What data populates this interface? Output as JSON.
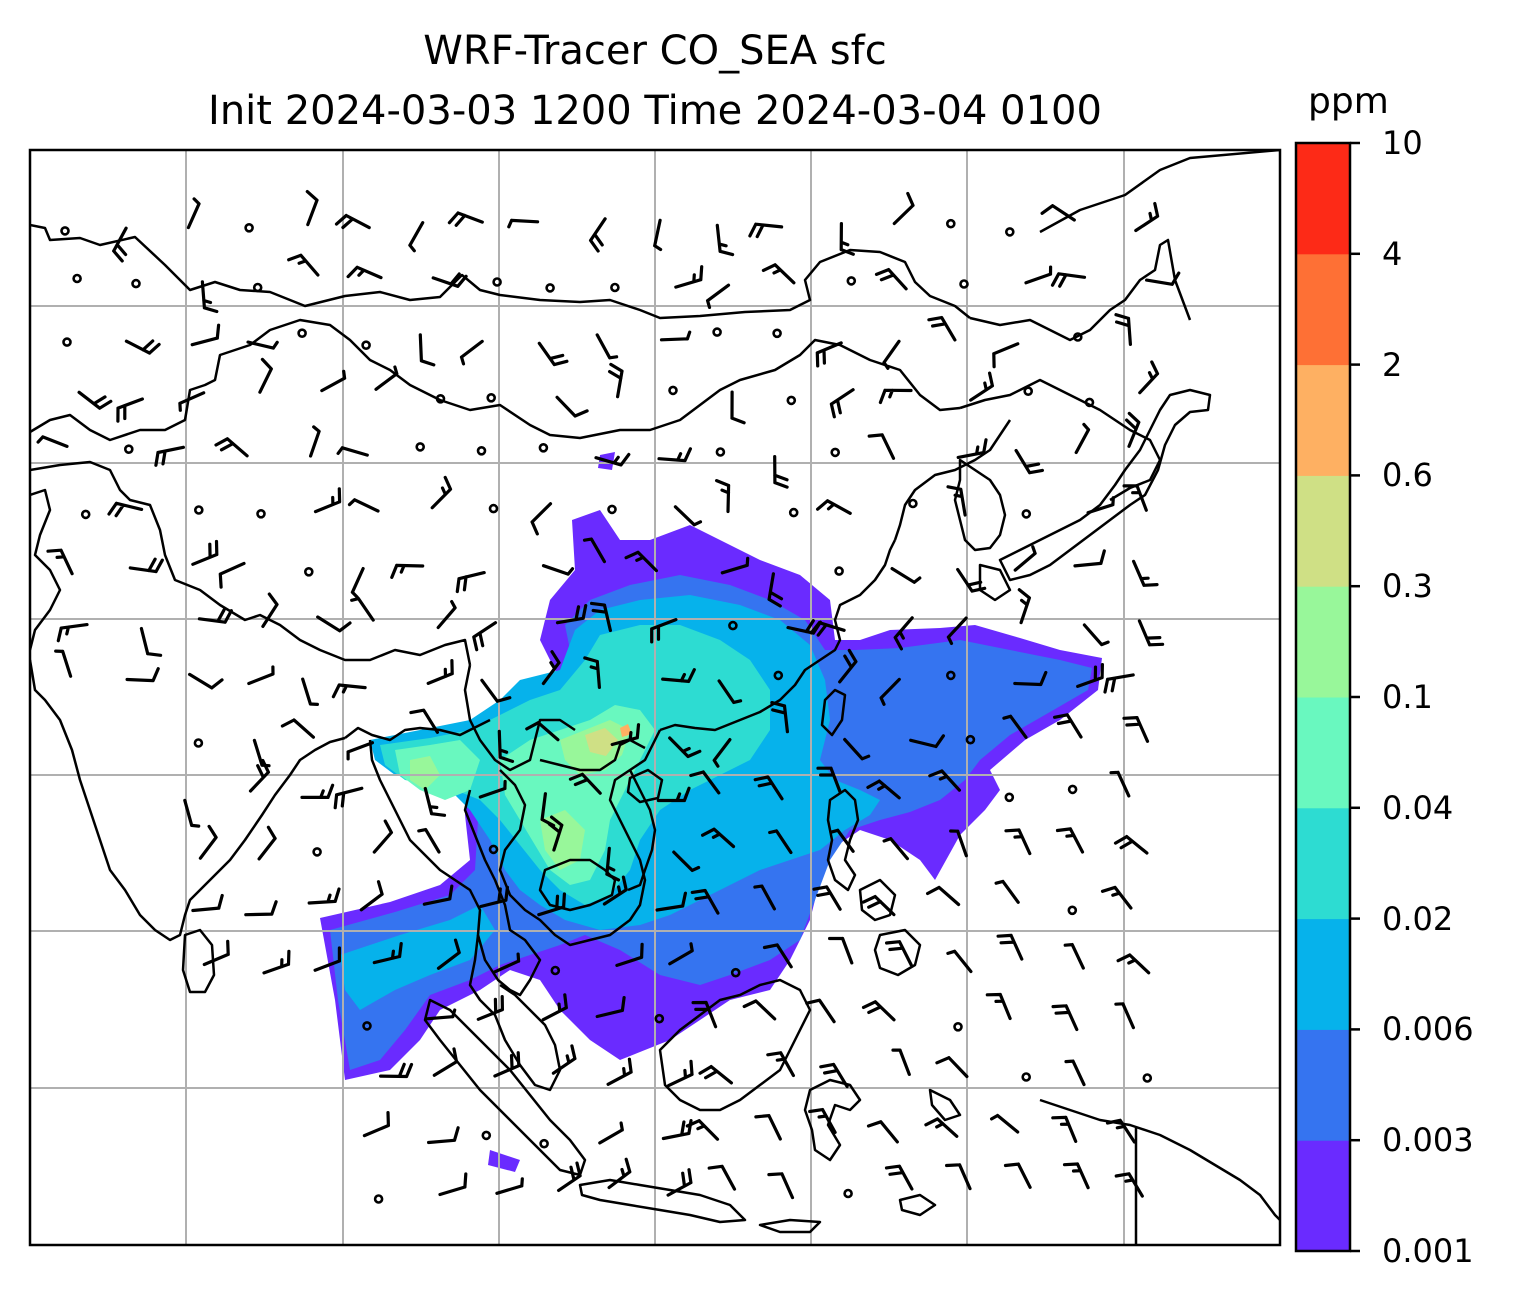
{
  "title": {
    "line1": "WRF-Tracer CO_SEA sfc",
    "line2": "Init 2024-03-03 1200 Time 2024-03-04 0100"
  },
  "colorbar": {
    "unit": "ppm",
    "ticks": [
      "0.001",
      "0.003",
      "0.006",
      "0.02",
      "0.04",
      "0.1",
      "0.3",
      "0.6",
      "2",
      "4",
      "10"
    ],
    "colors": [
      "#6a2bff",
      "#3574f0",
      "#06b2eb",
      "#2ddcd2",
      "#69f8bf",
      "#98f79a",
      "#cfe085",
      "#feb062",
      "#fe7035",
      "#fd2a17"
    ]
  },
  "map": {
    "variable": "CO_SEA tracer, surface",
    "gridlines": true,
    "wind_barbs": true
  }
}
